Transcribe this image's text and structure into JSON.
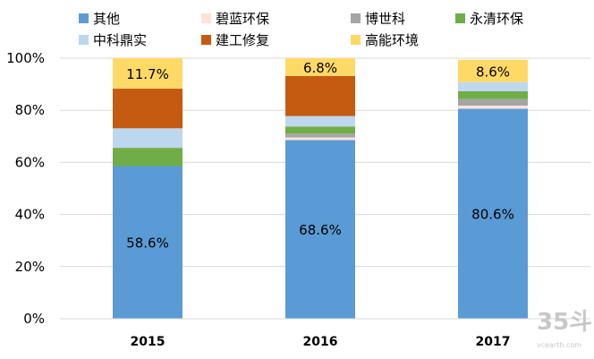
{
  "chart_data": {
    "type": "bar",
    "stacked": true,
    "categories": [
      "2015",
      "2016",
      "2017"
    ],
    "series": [
      {
        "name": "其他",
        "color": "#5b9bd5",
        "values": [
          58.6,
          68.6,
          80.6
        ]
      },
      {
        "name": "碧蓝环保",
        "color": "#fce4d6",
        "values": [
          0,
          1.0,
          1.2
        ]
      },
      {
        "name": "博世科",
        "color": "#a5a5a5",
        "values": [
          0,
          1.5,
          2.5
        ]
      },
      {
        "name": "永清环保",
        "color": "#70ad47",
        "values": [
          7.0,
          2.7,
          3.0
        ]
      },
      {
        "name": "中科鼎实",
        "color": "#bdd7ee",
        "values": [
          7.5,
          4.0,
          3.5
        ]
      },
      {
        "name": "建工修复",
        "color": "#c55a11",
        "values": [
          15.2,
          15.4,
          0
        ]
      },
      {
        "name": "高能环境",
        "color": "#ffd966",
        "values": [
          11.7,
          6.8,
          8.6
        ]
      }
    ],
    "data_labels": [
      {
        "category": "2015",
        "series": "其他",
        "text": "58.6%"
      },
      {
        "category": "2016",
        "series": "其他",
        "text": "68.6%"
      },
      {
        "category": "2017",
        "series": "其他",
        "text": "80.6%"
      },
      {
        "category": "2015",
        "series": "高能环境",
        "text": "11.7%"
      },
      {
        "category": "2016",
        "series": "高能环境",
        "text": "6.8%"
      },
      {
        "category": "2017",
        "series": "高能环境",
        "text": "8.6%"
      }
    ],
    "y_ticks": [
      "0%",
      "20%",
      "40%",
      "60%",
      "80%",
      "100%"
    ],
    "ylim": [
      0,
      100
    ],
    "legend_position": "top",
    "grid": true,
    "gridline_color": "#d9d9d9"
  },
  "watermark": {
    "number": "35斗",
    "site": "vcearth.com"
  }
}
